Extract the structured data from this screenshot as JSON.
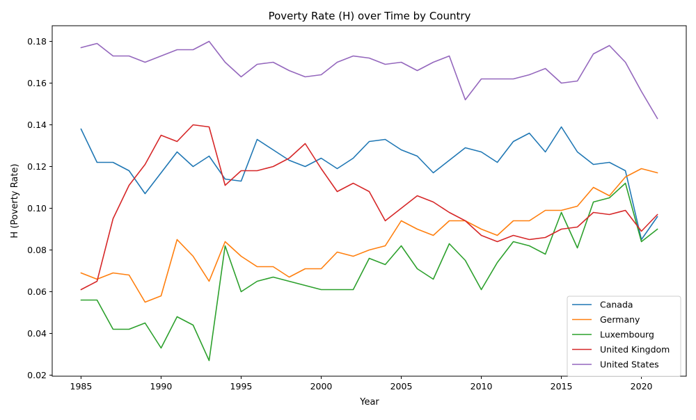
{
  "chart_data": {
    "type": "line",
    "title": "Poverty Rate (H) over Time by Country",
    "xlabel": "Year",
    "ylabel": "H (Poverty Rate)",
    "xlim": [
      1983.2,
      2022.8
    ],
    "ylim": [
      0.0195,
      0.1875
    ],
    "xticks": [
      1985,
      1990,
      1995,
      2000,
      2005,
      2010,
      2015,
      2020
    ],
    "yticks": [
      0.02,
      0.04,
      0.06,
      0.08,
      0.1,
      0.12,
      0.14,
      0.16,
      0.18
    ],
    "ytick_labels": [
      "0.02",
      "0.04",
      "0.06",
      "0.08",
      "0.10",
      "0.12",
      "0.14",
      "0.16",
      "0.18"
    ],
    "grid": false,
    "legend_position": "lower-right",
    "x": [
      1985,
      1986,
      1987,
      1988,
      1989,
      1990,
      1991,
      1992,
      1993,
      1994,
      1995,
      1996,
      1997,
      1998,
      1999,
      2000,
      2001,
      2002,
      2003,
      2004,
      2005,
      2006,
      2007,
      2008,
      2009,
      2010,
      2011,
      2012,
      2013,
      2014,
      2015,
      2016,
      2017,
      2018,
      2019,
      2020,
      2021
    ],
    "series": [
      {
        "name": "Canada",
        "color": "#1f77b4",
        "values": [
          0.138,
          0.122,
          0.122,
          0.118,
          0.107,
          0.117,
          0.127,
          0.12,
          0.125,
          0.114,
          0.113,
          0.133,
          0.128,
          0.123,
          0.12,
          0.124,
          0.119,
          0.124,
          0.132,
          0.133,
          0.128,
          0.125,
          0.117,
          0.123,
          0.129,
          0.127,
          0.122,
          0.132,
          0.136,
          0.127,
          0.139,
          0.127,
          0.121,
          0.122,
          0.118,
          0.085,
          0.096
        ]
      },
      {
        "name": "Germany",
        "color": "#ff7f0e",
        "values": [
          0.069,
          0.066,
          0.069,
          0.068,
          0.055,
          0.058,
          0.085,
          0.077,
          0.065,
          0.084,
          0.077,
          0.072,
          0.072,
          0.067,
          0.071,
          0.071,
          0.079,
          0.077,
          0.08,
          0.082,
          0.094,
          0.09,
          0.087,
          0.094,
          0.094,
          0.09,
          0.087,
          0.094,
          0.094,
          0.099,
          0.099,
          0.101,
          0.11,
          0.106,
          0.115,
          0.119,
          0.117
        ]
      },
      {
        "name": "Luxembourg",
        "color": "#2ca02c",
        "values": [
          0.056,
          0.056,
          0.042,
          0.042,
          0.045,
          0.033,
          0.048,
          0.044,
          0.027,
          0.082,
          0.06,
          0.065,
          0.067,
          0.065,
          0.063,
          0.061,
          0.061,
          0.061,
          0.076,
          0.073,
          0.082,
          0.071,
          0.066,
          0.083,
          0.075,
          0.061,
          0.074,
          0.084,
          0.082,
          0.078,
          0.098,
          0.081,
          0.103,
          0.105,
          0.112,
          0.084,
          0.09
        ]
      },
      {
        "name": "United Kingdom",
        "color": "#d62728",
        "values": [
          0.061,
          0.065,
          0.095,
          0.111,
          0.121,
          0.135,
          0.132,
          0.14,
          0.139,
          0.111,
          0.118,
          0.118,
          0.12,
          0.124,
          0.131,
          0.119,
          0.108,
          0.112,
          0.108,
          0.094,
          0.1,
          0.106,
          0.103,
          0.098,
          0.094,
          0.087,
          0.084,
          0.087,
          0.085,
          0.086,
          0.09,
          0.091,
          0.098,
          0.097,
          0.099,
          0.089,
          0.097
        ]
      },
      {
        "name": "United States",
        "color": "#9467bd",
        "values": [
          0.177,
          0.179,
          0.173,
          0.173,
          0.17,
          0.173,
          0.176,
          0.176,
          0.18,
          0.17,
          0.163,
          0.169,
          0.17,
          0.166,
          0.163,
          0.164,
          0.17,
          0.173,
          0.172,
          0.169,
          0.17,
          0.166,
          0.17,
          0.173,
          0.152,
          0.162,
          0.162,
          0.162,
          0.164,
          0.167,
          0.16,
          0.161,
          0.174,
          0.178,
          0.17,
          0.156,
          0.143
        ]
      }
    ]
  }
}
